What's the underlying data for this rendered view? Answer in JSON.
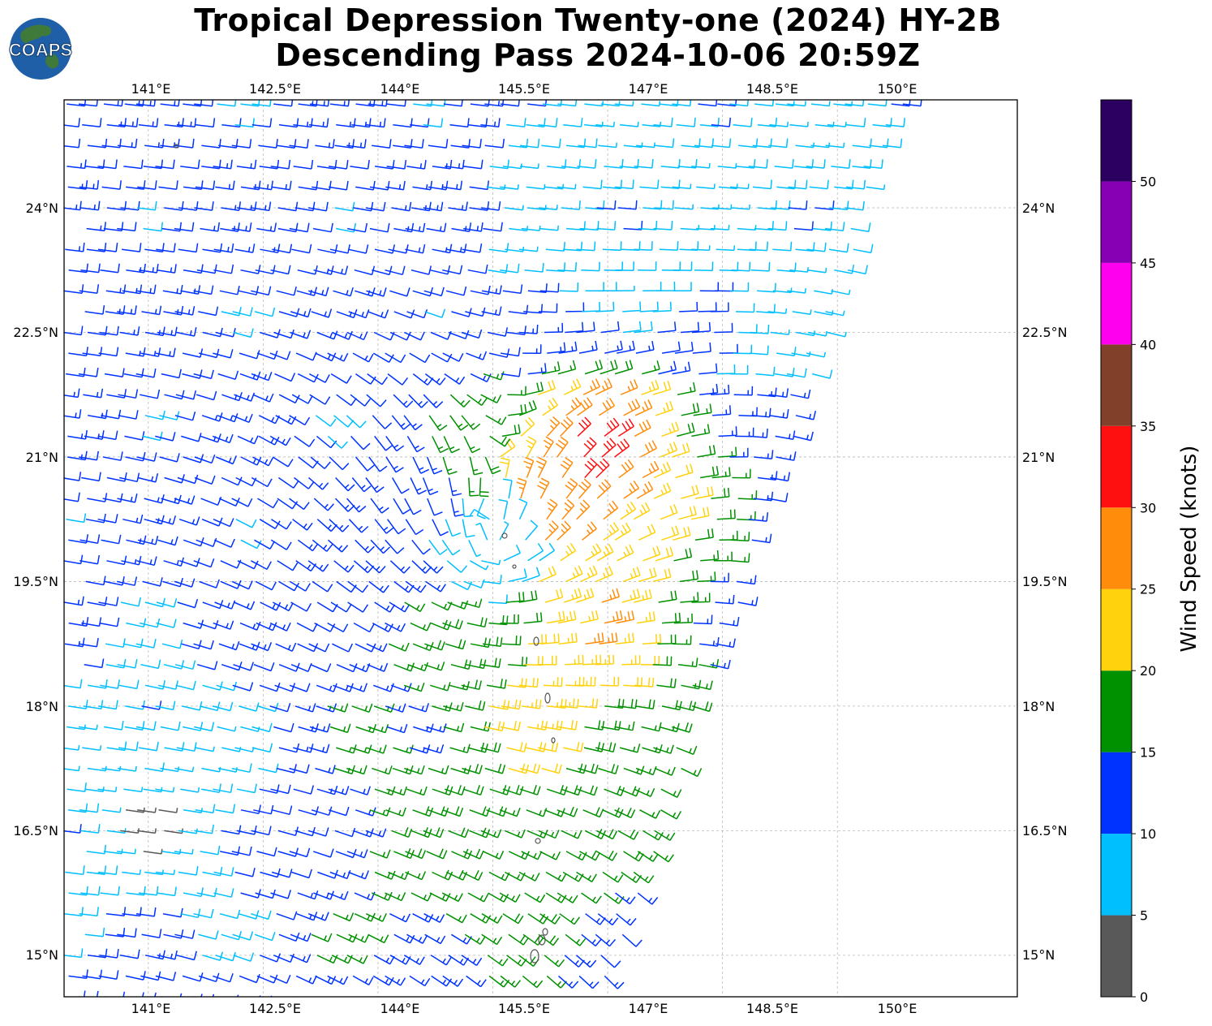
{
  "title": {
    "line1": "Tropical Depression Twenty-one (2024) HY-2B",
    "line2": "Descending Pass 2024-10-06 20:59Z"
  },
  "logo": {
    "text": "COAPS",
    "colors": {
      "ocean": "#1f5fa8",
      "land": "#3f7a3a",
      "text": "#ffffff"
    }
  },
  "map": {
    "lon_range": [
      139.9,
      152.35
    ],
    "lat_range": [
      14.5,
      25.3
    ],
    "lon_ticks": [
      "141°E",
      "142.5°E",
      "144°E",
      "145.5°E",
      "147°E",
      "148.5°E",
      "150°E"
    ],
    "lat_ticks": [
      "24°N",
      "22.5°N",
      "21°N",
      "19.5°N",
      "18°N",
      "16.5°N",
      "15°N"
    ],
    "grid": true,
    "storm_center_approx": {
      "lon": 145.4,
      "lat": 19.9
    },
    "swath_edge_approx": [
      [
        150.9,
        25.3
      ],
      [
        147.0,
        14.5
      ]
    ]
  },
  "colorbar": {
    "label": "Wind Speed (knots)",
    "ticks": [
      "0",
      "5",
      "10",
      "15",
      "20",
      "25",
      "30",
      "35",
      "40",
      "45",
      "50"
    ],
    "bins": [
      {
        "min": 0,
        "max": 5,
        "color": "#595959"
      },
      {
        "min": 5,
        "max": 10,
        "color": "#00bfff"
      },
      {
        "min": 10,
        "max": 15,
        "color": "#0033ff"
      },
      {
        "min": 15,
        "max": 20,
        "color": "#009100"
      },
      {
        "min": 20,
        "max": 25,
        "color": "#ffd20d"
      },
      {
        "min": 25,
        "max": 30,
        "color": "#ff8c0a"
      },
      {
        "min": 30,
        "max": 35,
        "color": "#ff1010"
      },
      {
        "min": 35,
        "max": 40,
        "color": "#80402a"
      },
      {
        "min": 40,
        "max": 45,
        "color": "#ff00ee"
      },
      {
        "min": 45,
        "max": 50,
        "color": "#8800b4"
      },
      {
        "min": 50,
        "max": 55,
        "color": "#2b0060"
      }
    ]
  }
}
